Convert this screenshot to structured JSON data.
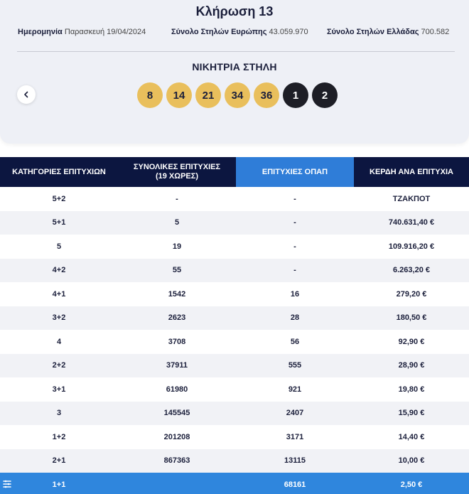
{
  "header": {
    "title": "Κλήρωση 13",
    "date_label": "Ημερομηνία",
    "date_value": "Παρασκευή 19/04/2024",
    "europe_label": "Σύνολο Στηλών Ευρώπης",
    "europe_value": "43.059.970",
    "greece_label": "Σύνολο Στηλών Ελλάδας",
    "greece_value": "700.582",
    "winning_label": "ΝΙΚΗΤΡΙΑ ΣΤΗΛΗ",
    "back_icon": "chevron-left-icon"
  },
  "numbers": [
    "8",
    "14",
    "21",
    "34",
    "36"
  ],
  "stars": [
    "1",
    "2"
  ],
  "colors": {
    "ball_main": "#e9bf5c",
    "ball_star": "#1d1e26",
    "header_dark": "#0c1640",
    "accent_blue": "#2f7dd8"
  },
  "table": {
    "headers": [
      "ΚΑΤΗΓΟΡΙΕΣ ΕΠΙΤΥΧΙΩΝ",
      "ΣΥΝΟΛΙΚΕΣ ΕΠΙΤΥΧΙΕΣ",
      "(19 ΧΩΡΕΣ)",
      "ΕΠΙΤΥΧΙΕΣ ΟΠΑΠ",
      "ΚΕΡΔΗ ΑΝΑ ΕΠΙΤΥΧΙΑ"
    ],
    "rows": [
      [
        "5+2",
        "-",
        "-",
        "ΤΖΑΚΠΟΤ"
      ],
      [
        "5+1",
        "5",
        "-",
        "740.631,40 €"
      ],
      [
        "5",
        "19",
        "-",
        "109.916,20 €"
      ],
      [
        "4+2",
        "55",
        "-",
        "6.263,20 €"
      ],
      [
        "4+1",
        "1542",
        "16",
        "279,20 €"
      ],
      [
        "3+2",
        "2623",
        "28",
        "180,50 €"
      ],
      [
        "4",
        "3708",
        "56",
        "92,90 €"
      ],
      [
        "2+2",
        "37911",
        "555",
        "28,90 €"
      ],
      [
        "3+1",
        "61980",
        "921",
        "19,80 €"
      ],
      [
        "3",
        "145545",
        "2407",
        "15,90 €"
      ],
      [
        "1+2",
        "201208",
        "3171",
        "14,40 €"
      ],
      [
        "2+1",
        "867363",
        "13115",
        "10,00 €"
      ],
      [
        "1+1",
        "",
        "68161",
        "2,50 €"
      ]
    ],
    "highlight_icon": "list-icon"
  }
}
